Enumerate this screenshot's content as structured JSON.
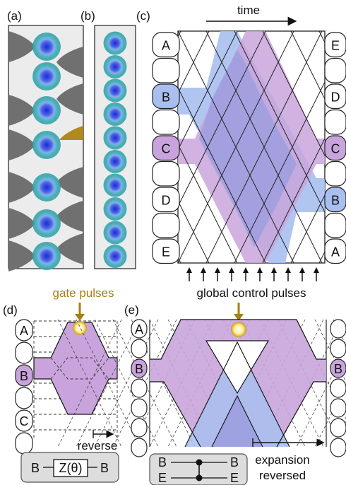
{
  "panels": {
    "a": "(a)",
    "b": "(b)",
    "c": "(c)",
    "d": "(d)",
    "e": "(e)"
  },
  "panel_c": {
    "time_label": "time",
    "left_qubits": [
      "A",
      "",
      "B",
      "",
      "C",
      "",
      "D",
      "",
      "E"
    ],
    "right_qubits": [
      "E",
      "",
      "D",
      "",
      "C",
      "",
      "B",
      "",
      "A"
    ],
    "caption": "global control pulses",
    "arrow_count": 10
  },
  "panel_d": {
    "gate_caption": "gate pulses",
    "qubits": [
      "A",
      "",
      "B",
      "",
      "C",
      ""
    ],
    "reverse_label": "reverse",
    "gate": {
      "left": "B",
      "box": "Z(θ)",
      "right": "B"
    }
  },
  "panel_e": {
    "left_qubits": [
      "A",
      "",
      "B",
      "",
      "",
      "",
      ""
    ],
    "right_qubits": [
      "",
      "",
      "B",
      "",
      "",
      "",
      ""
    ],
    "gate": {
      "top_left": "B",
      "top_right": "B",
      "bottom_left": "E",
      "bottom_right": "E"
    },
    "caption_line1": "expansion",
    "caption_line2": "reversed"
  },
  "colors": {
    "blue": "#a9bff0",
    "purple": "#c9a4dc",
    "overlap": "#9d9fdf",
    "gold": "#b08a1e",
    "gray_tip": "#707070",
    "panel_bg": "#ececec"
  }
}
